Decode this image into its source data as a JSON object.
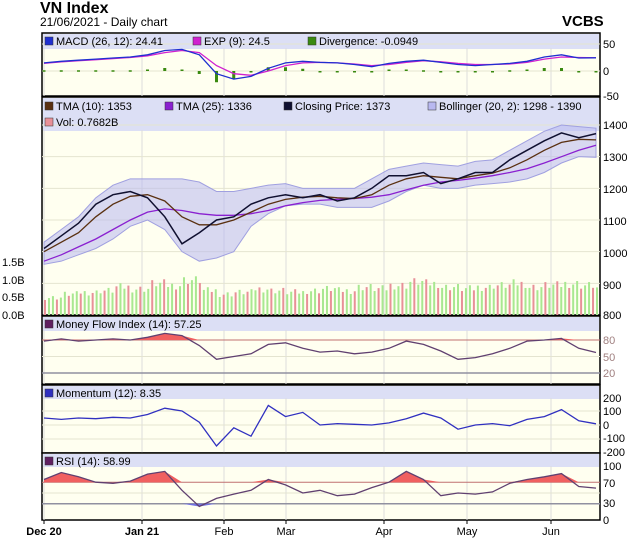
{
  "header": {
    "title": "VN Index",
    "subtitle": "21/06/2021 - Daily chart",
    "brand": "VCBS"
  },
  "colors": {
    "panel_bg": "#fffff0",
    "legend_bg": "#dcdff5",
    "macd": "#1f2fd0",
    "exp": "#d020d0",
    "divergence": "#3a8a10",
    "tma10": "#5a3010",
    "tma25": "#8a20d0",
    "close": "#101030",
    "bollinger": "#b8b8f0",
    "vol_up": "#a8e890",
    "vol_down": "#e89098",
    "area_red": "#f06060",
    "momentum": "#3030c0"
  },
  "chart_data": [
    {
      "type": "line",
      "title": "MACD",
      "legend": [
        "MACD (26, 12): 24.41",
        "EXP (9): 24.5",
        "Divergence: -0.0949"
      ],
      "ylim": [
        -50,
        60
      ],
      "yticks": [
        "50",
        "0",
        "-50"
      ],
      "macd": [
        15,
        18,
        20,
        22,
        24,
        26,
        30,
        38,
        40,
        30,
        -5,
        -15,
        -10,
        5,
        15,
        18,
        16,
        15,
        12,
        8,
        14,
        18,
        20,
        16,
        12,
        10,
        12,
        14,
        18,
        26,
        30,
        24,
        24.41
      ],
      "exp": [
        14,
        17,
        19,
        21,
        23,
        25,
        28,
        34,
        38,
        34,
        10,
        -5,
        -8,
        0,
        10,
        15,
        16,
        15,
        13,
        10,
        12,
        16,
        19,
        17,
        14,
        12,
        12,
        13,
        16,
        22,
        26,
        25,
        24.5
      ]
    },
    {
      "type": "line",
      "title": "Price",
      "legend": [
        "TMA (10): 1353",
        "TMA (25): 1336",
        "Closing Price: 1373",
        "Bollinger (20, 2): 1298 - 1390",
        "Vol: 0.7682B"
      ],
      "ylim": [
        800,
        1450
      ],
      "yticks": [
        "1400",
        "1300",
        "1200",
        "1100",
        "1000",
        "900",
        "800"
      ],
      "vol_ticks": [
        "1.5B",
        "1.0B",
        "0.5B",
        "0.0B"
      ],
      "close": [
        1010,
        1050,
        1090,
        1150,
        1180,
        1190,
        1170,
        1110,
        1025,
        1060,
        1100,
        1110,
        1150,
        1170,
        1180,
        1170,
        1180,
        1160,
        1170,
        1200,
        1240,
        1240,
        1250,
        1215,
        1230,
        1250,
        1250,
        1290,
        1320,
        1350,
        1375,
        1360,
        1373
      ],
      "tma10": [
        1000,
        1030,
        1060,
        1110,
        1150,
        1175,
        1180,
        1160,
        1110,
        1085,
        1085,
        1100,
        1125,
        1150,
        1165,
        1172,
        1175,
        1170,
        1168,
        1180,
        1210,
        1230,
        1240,
        1235,
        1230,
        1240,
        1248,
        1265,
        1290,
        1320,
        1345,
        1355,
        1353
      ],
      "tma25": [
        970,
        990,
        1015,
        1040,
        1070,
        1100,
        1125,
        1135,
        1130,
        1120,
        1115,
        1115,
        1120,
        1130,
        1145,
        1155,
        1162,
        1165,
        1168,
        1172,
        1180,
        1195,
        1210,
        1220,
        1225,
        1232,
        1240,
        1250,
        1262,
        1280,
        1300,
        1320,
        1336
      ],
      "boll_upper": [
        1030,
        1070,
        1110,
        1170,
        1210,
        1230,
        1230,
        1230,
        1230,
        1220,
        1190,
        1190,
        1200,
        1210,
        1215,
        1200,
        1200,
        1200,
        1200,
        1230,
        1260,
        1270,
        1280,
        1275,
        1270,
        1285,
        1290,
        1320,
        1350,
        1380,
        1400,
        1395,
        1390
      ],
      "boll_lower": [
        960,
        970,
        990,
        1010,
        1040,
        1080,
        1100,
        1070,
        1000,
        970,
        980,
        1000,
        1080,
        1120,
        1145,
        1150,
        1150,
        1140,
        1140,
        1140,
        1160,
        1190,
        1210,
        1200,
        1200,
        1210,
        1215,
        1220,
        1230,
        1250,
        1280,
        1300,
        1298
      ],
      "volume_b": [
        0.5,
        0.6,
        0.65,
        0.7,
        0.8,
        0.75,
        0.9,
        0.85,
        1.0,
        0.7,
        0.6,
        0.65,
        0.75,
        0.7,
        0.65,
        0.7,
        0.75,
        0.7,
        0.8,
        0.75,
        0.85,
        0.95,
        0.9,
        0.8,
        0.75,
        0.8,
        0.85,
        0.9,
        0.8,
        0.85,
        0.9,
        0.85,
        0.77
      ]
    },
    {
      "type": "line",
      "title": "Money Flow Index",
      "legend": [
        "Money Flow Index (14): 57.25"
      ],
      "ylim": [
        0,
        100
      ],
      "yticks": [
        "80",
        "50",
        "20"
      ],
      "values": [
        78,
        82,
        78,
        80,
        82,
        80,
        85,
        92,
        88,
        70,
        45,
        50,
        55,
        72,
        75,
        65,
        58,
        60,
        55,
        58,
        65,
        78,
        72,
        60,
        45,
        48,
        55,
        65,
        78,
        80,
        83,
        65,
        57.25
      ]
    },
    {
      "type": "line",
      "title": "Momentum",
      "legend": [
        "Momentum (12): 8.35"
      ],
      "ylim": [
        -200,
        200
      ],
      "yticks": [
        "200",
        "100",
        "0",
        "-100",
        "-200"
      ],
      "values": [
        50,
        40,
        50,
        45,
        55,
        50,
        75,
        120,
        100,
        20,
        -150,
        -20,
        -80,
        140,
        60,
        90,
        0,
        10,
        5,
        0,
        15,
        45,
        85,
        50,
        -30,
        0,
        10,
        -5,
        40,
        60,
        110,
        30,
        8.35
      ]
    },
    {
      "type": "line",
      "title": "RSI",
      "legend": [
        "RSI (14): 58.99"
      ],
      "ylim": [
        0,
        100
      ],
      "yticks": [
        "100",
        "70",
        "30",
        "0"
      ],
      "values": [
        75,
        88,
        80,
        70,
        68,
        72,
        85,
        90,
        55,
        25,
        40,
        48,
        55,
        75,
        65,
        50,
        55,
        45,
        48,
        60,
        70,
        90,
        75,
        45,
        50,
        48,
        52,
        68,
        75,
        80,
        86,
        62,
        58.99
      ]
    },
    {
      "type": "axis",
      "xticks": [
        "Dec 20",
        "Jan 21",
        "Feb",
        "Mar",
        "Apr",
        "May",
        "Jun"
      ]
    }
  ]
}
